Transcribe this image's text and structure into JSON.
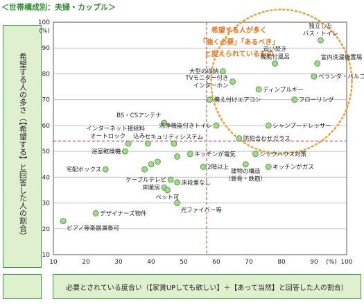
{
  "header": "＜世帯構成別：夫婦・カップル＞",
  "ylabel": "希望する人の多さ（【希望する】と回答した人の割合）",
  "xlabel": "必要とされている度合い（【家賃UPしても欲しい】＋【あって当然】と回答した人の割合）",
  "annotation": [
    "希望する人が多く",
    "「強く必要」「あるべき」",
    "と捉えられているもの"
  ],
  "colors": {
    "point": "#9fd98a",
    "point_stroke": "#4a8a3a",
    "grid": "#b0b0b0",
    "ref_line": "#e0303a",
    "circle": "#f0a030",
    "annotation": "#e8731a"
  },
  "chart_data": {
    "type": "scatter",
    "xlim": [
      10,
      100
    ],
    "ylim": [
      10,
      100
    ],
    "x_unit": "(%)",
    "y_unit": "(%)",
    "xticks": [
      10,
      20,
      30,
      40,
      50,
      60,
      70,
      80,
      90,
      100
    ],
    "yticks": [
      10,
      20,
      30,
      40,
      50,
      60,
      70,
      80,
      90,
      100
    ],
    "grid": "horizontal",
    "ref_x": 57,
    "ref_y": 54,
    "points": [
      {
        "label": "独立した\nバス・トイレ",
        "x": 92,
        "y": 93,
        "lpos": "n"
      },
      {
        "label": "追い焚き\n機能付風呂",
        "x": 78,
        "y": 84,
        "lpos": "n"
      },
      {
        "label": "室内洗濯機置場",
        "x": 91,
        "y": 84,
        "lpos": "ne"
      },
      {
        "label": "大型の収納",
        "x": 62,
        "y": 81,
        "lpos": "w"
      },
      {
        "label": "TVモニター付き\nインターホン",
        "x": 65,
        "y": 77,
        "lpos": "w"
      },
      {
        "label": "ベランダ・バルコニー",
        "x": 90,
        "y": 79,
        "lpos": "e"
      },
      {
        "label": "ディンプルキー",
        "x": 73,
        "y": 74,
        "lpos": "e"
      },
      {
        "label": "備え付けエアコン",
        "x": 58,
        "y": 70,
        "lpos": "e"
      },
      {
        "label": "フローリング",
        "x": 84,
        "y": 70,
        "lpos": "e"
      },
      {
        "label": "BS・CSアンテナ",
        "x": 44,
        "y": 61,
        "lpos": "nw"
      },
      {
        "label": "洗浄機能付きトイレ",
        "x": 60,
        "y": 60,
        "lpos": "w"
      },
      {
        "label": "シャンプードレッサー",
        "x": 76,
        "y": 60,
        "lpos": "e"
      },
      {
        "label": "インターネット接続料\n込み",
        "x": 39,
        "y": 53,
        "lpos": "nw"
      },
      {
        "label": "セキュリティシステム",
        "x": 47,
        "y": 53,
        "lpos": "n"
      },
      {
        "label": "防犯合わせガラス",
        "x": 67,
        "y": 55,
        "lpos": "e"
      },
      {
        "label": "オートロック",
        "x": 33,
        "y": 53,
        "lpos": "nw"
      },
      {
        "label": "浴室乾燥機",
        "x": 32,
        "y": 50,
        "lpos": "w"
      },
      {
        "label": "キッチンが電気",
        "x": 52,
        "y": 49,
        "lpos": "e"
      },
      {
        "label": "シックハウス対策",
        "x": 72,
        "y": 49,
        "lpos": "e"
      },
      {
        "label": "宅配ボックス",
        "x": 26,
        "y": 43,
        "lpos": "w"
      },
      {
        "label": "",
        "x": 38,
        "y": 43,
        "lpos": "none"
      },
      {
        "label": "",
        "x": 40,
        "y": 45,
        "lpos": "none"
      },
      {
        "label": "",
        "x": 42,
        "y": 46,
        "lpos": "none"
      },
      {
        "label": "",
        "x": 48,
        "y": 48,
        "lpos": "none"
      },
      {
        "label": "2階以上",
        "x": 56,
        "y": 44,
        "lpos": "e"
      },
      {
        "label": "キッチンがガス",
        "x": 76,
        "y": 44,
        "lpos": "e"
      },
      {
        "label": "ケーブルテレビ",
        "x": 46,
        "y": 39,
        "lpos": "w"
      },
      {
        "label": "床暖房",
        "x": 44,
        "y": 36,
        "lpos": "w"
      },
      {
        "label": "建物の構造\n（鉄骨・鉄筋）",
        "x": 69,
        "y": 45,
        "lpos": "s"
      },
      {
        "label": "床段差なし",
        "x": 48,
        "y": 38,
        "lpos": "e"
      },
      {
        "label": "ペット可",
        "x": 45,
        "y": 35,
        "lpos": "s"
      },
      {
        "label": "光ファイバー等",
        "x": 48,
        "y": 30,
        "lpos": "se"
      },
      {
        "label": "デザイナーズ物件",
        "x": 23,
        "y": 26,
        "lpos": "e"
      },
      {
        "label": "ピアノ等楽器演奏可",
        "x": 13,
        "y": 23,
        "lpos": "se"
      }
    ]
  }
}
